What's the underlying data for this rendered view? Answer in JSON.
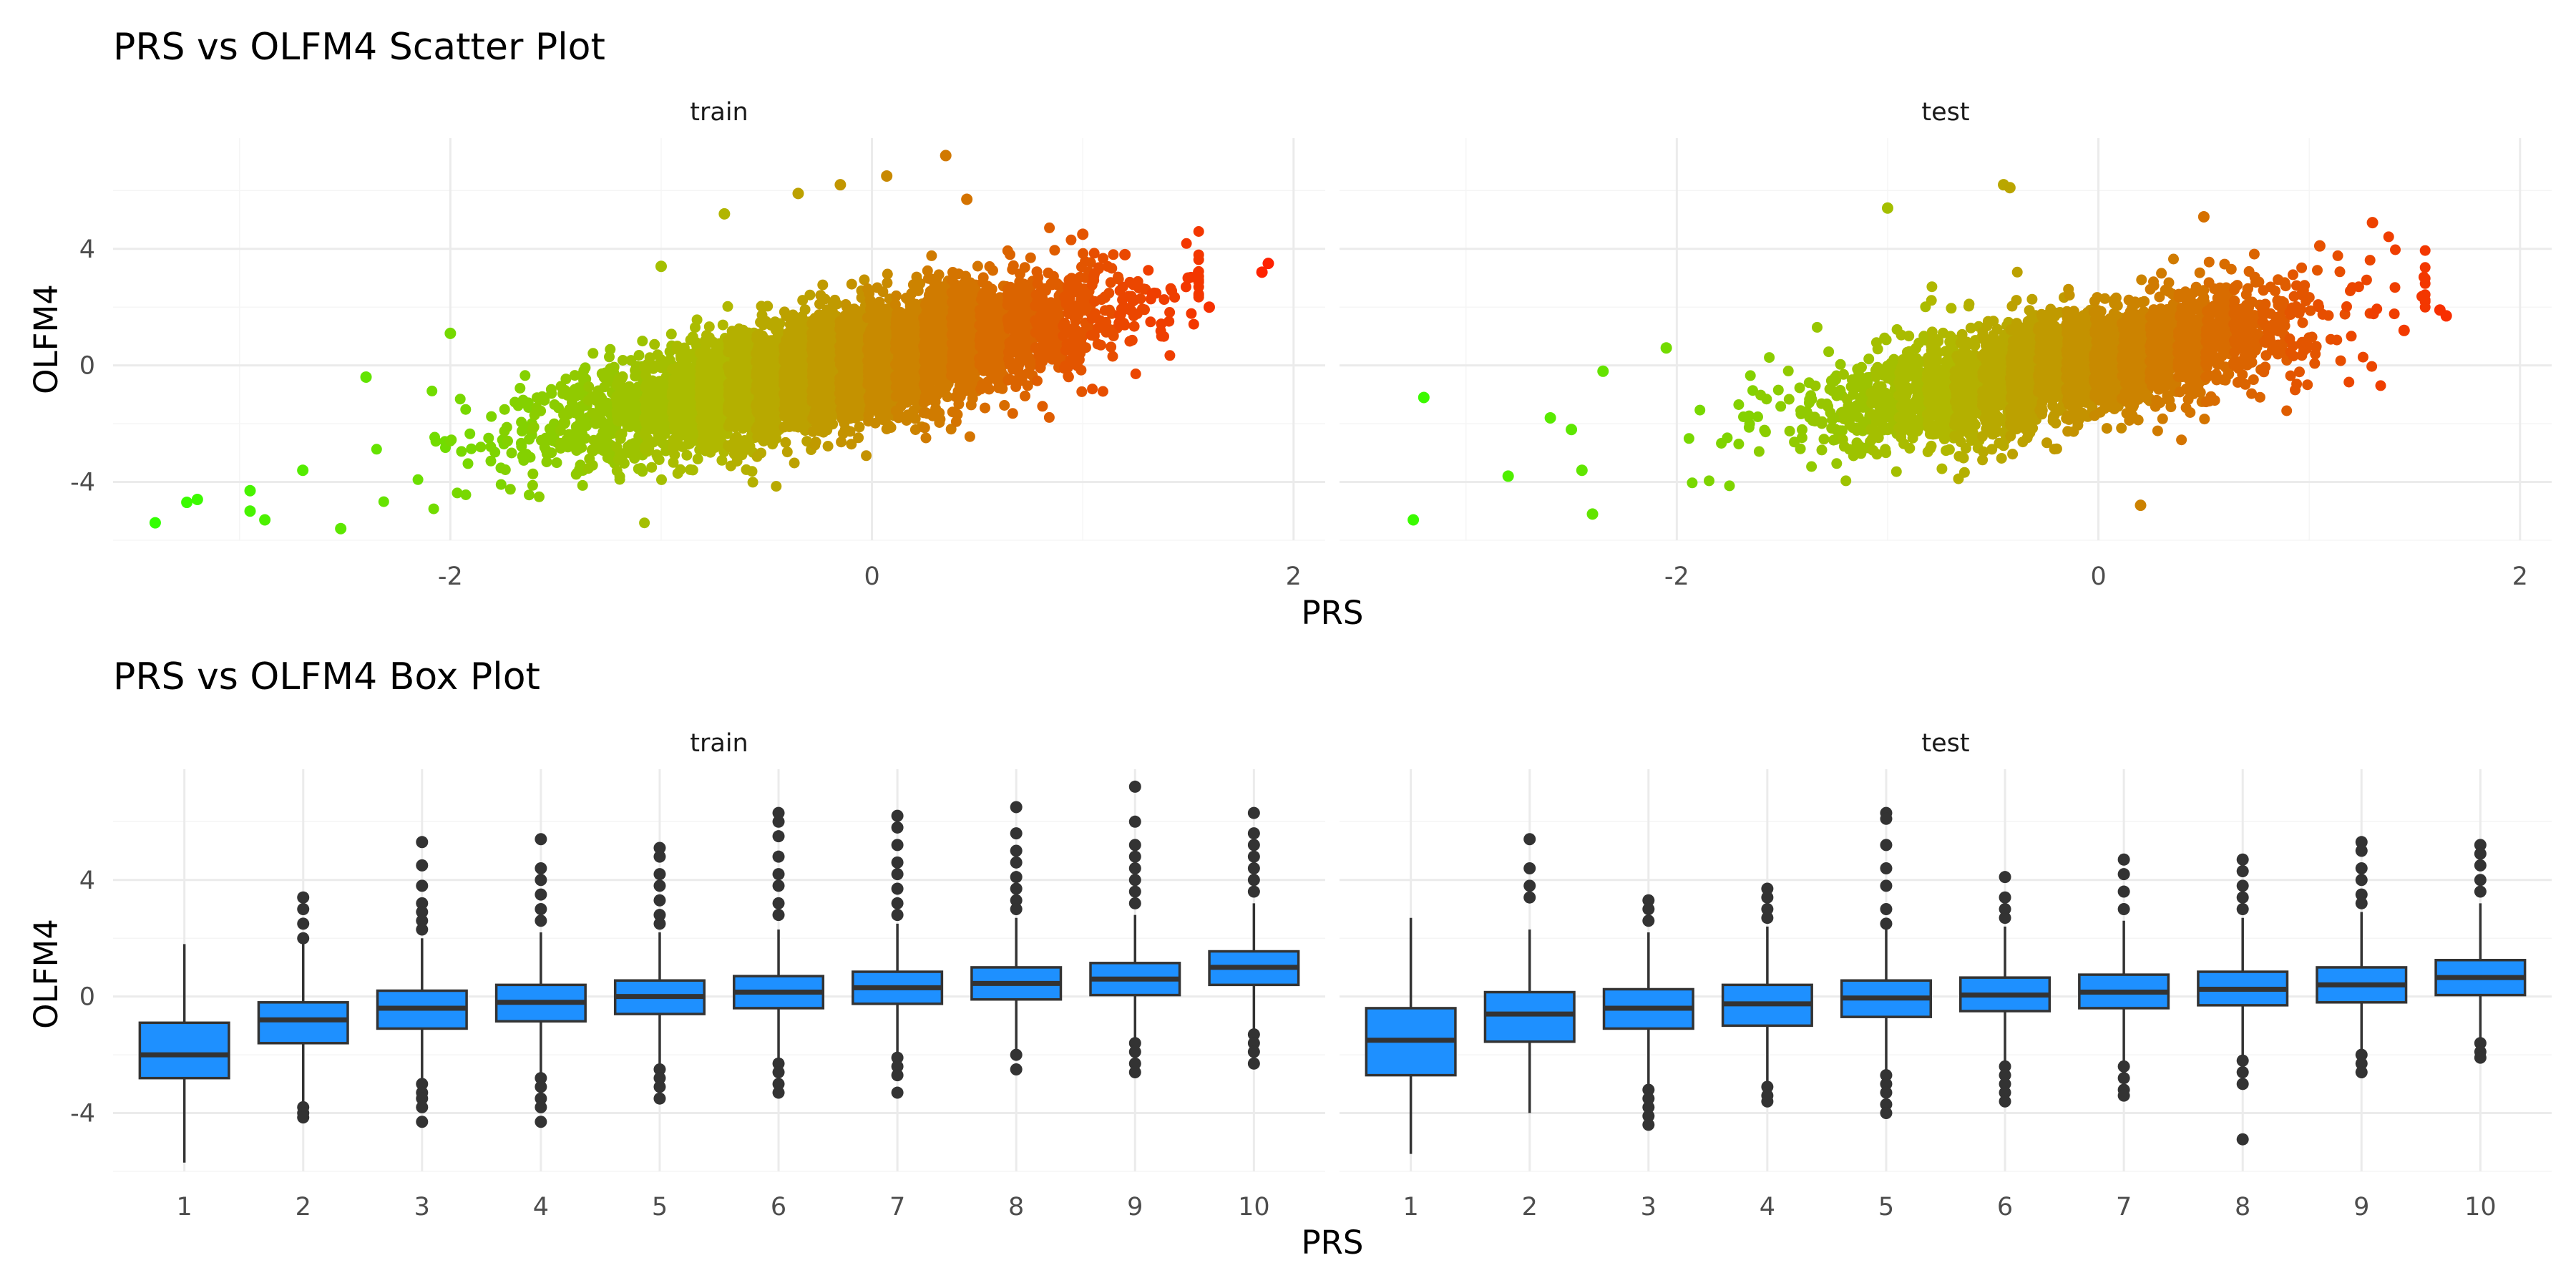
{
  "figure": {
    "scatter_title": "PRS vs OLFM4 Scatter Plot",
    "box_title": "PRS vs OLFM4 Box Plot"
  },
  "colors": {
    "gradient_low": "#33ff00",
    "gradient_mid": "#b0b800",
    "gradient_high": "#ff2000",
    "box_fill": "#1e90ff",
    "box_line": "#333333",
    "outlier": "#333333"
  },
  "chart_data": [
    {
      "type": "scatter",
      "title": "PRS vs OLFM4 Scatter Plot",
      "xlabel": "PRS",
      "ylabel": "OLFM4",
      "xlim": [
        -3.6,
        2.15
      ],
      "ylim": [
        -6.0,
        7.8
      ],
      "x_ticks": [
        -2,
        0,
        2
      ],
      "y_ticks": [
        -4,
        0,
        4
      ],
      "grid": true,
      "color_scale": "PRS value, green (low) to red (high)",
      "facets": [
        {
          "name": "train",
          "cloud": {
            "n": 5500,
            "x_mean": -0.15,
            "x_sd": 0.6,
            "y_intercept": 0.2,
            "y_slope": 1.5,
            "y_sd": 0.95
          },
          "extreme_points": [
            {
              "x": -3.4,
              "y": -5.4
            },
            {
              "x": -3.25,
              "y": -4.7
            },
            {
              "x": -3.2,
              "y": -4.6
            },
            {
              "x": -2.95,
              "y": -4.3
            },
            {
              "x": -2.95,
              "y": -5.0
            },
            {
              "x": -2.88,
              "y": -5.3
            },
            {
              "x": -2.7,
              "y": -3.6
            },
            {
              "x": -2.52,
              "y": -5.6
            },
            {
              "x": -2.4,
              "y": -0.4
            },
            {
              "x": -2.0,
              "y": 1.1
            },
            {
              "x": -1.0,
              "y": 3.4
            },
            {
              "x": -0.7,
              "y": 5.2
            },
            {
              "x": -0.35,
              "y": 5.9
            },
            {
              "x": -0.15,
              "y": 6.2
            },
            {
              "x": 0.07,
              "y": 6.5
            },
            {
              "x": 0.35,
              "y": 7.2
            },
            {
              "x": 0.45,
              "y": 5.7
            },
            {
              "x": 1.0,
              "y": 4.5
            },
            {
              "x": 1.2,
              "y": 3.8
            },
            {
              "x": 1.5,
              "y": 3.0
            },
            {
              "x": 1.6,
              "y": 2.0
            },
            {
              "x": 1.85,
              "y": 3.2
            },
            {
              "x": 1.88,
              "y": 3.5
            }
          ]
        },
        {
          "name": "test",
          "cloud": {
            "n": 3000,
            "x_mean": -0.15,
            "x_sd": 0.55,
            "y_intercept": 0.15,
            "y_slope": 1.4,
            "y_sd": 0.95
          },
          "extreme_points": [
            {
              "x": -3.2,
              "y": -1.1
            },
            {
              "x": -3.25,
              "y": -5.3
            },
            {
              "x": -2.8,
              "y": -3.8
            },
            {
              "x": -2.6,
              "y": -1.8
            },
            {
              "x": -2.5,
              "y": -2.2
            },
            {
              "x": -2.45,
              "y": -3.6
            },
            {
              "x": -2.4,
              "y": -5.1
            },
            {
              "x": -2.35,
              "y": -0.2
            },
            {
              "x": -2.05,
              "y": 0.6
            },
            {
              "x": -1.0,
              "y": 5.4
            },
            {
              "x": -0.45,
              "y": 6.2
            },
            {
              "x": -0.42,
              "y": 6.1
            },
            {
              "x": 0.2,
              "y": -4.8
            },
            {
              "x": 0.5,
              "y": 5.1
            },
            {
              "x": 1.05,
              "y": 4.1
            },
            {
              "x": 1.3,
              "y": 4.9
            },
            {
              "x": 1.45,
              "y": 1.2
            },
            {
              "x": 1.62,
              "y": 1.9
            },
            {
              "x": 1.65,
              "y": 1.7
            }
          ]
        }
      ]
    },
    {
      "type": "box",
      "title": "PRS vs OLFM4 Box Plot",
      "xlabel": "PRS",
      "ylabel": "OLFM4",
      "categories": [
        "1",
        "2",
        "3",
        "4",
        "5",
        "6",
        "7",
        "8",
        "9",
        "10"
      ],
      "ylim": [
        -6.0,
        7.8
      ],
      "y_ticks": [
        -4,
        0,
        4
      ],
      "grid": true,
      "facets": [
        {
          "name": "train",
          "boxes": [
            {
              "q1": -2.8,
              "median": -2.0,
              "q3": -0.9,
              "lower": -5.7,
              "upper": 1.8,
              "outliers": []
            },
            {
              "q1": -1.6,
              "median": -0.8,
              "q3": -0.2,
              "lower": -3.6,
              "upper": 1.9,
              "outliers": [
                3.4,
                3.0,
                2.5,
                2.0,
                -3.8,
                -4.0,
                -4.15
              ]
            },
            {
              "q1": -1.1,
              "median": -0.4,
              "q3": 0.2,
              "lower": -2.9,
              "upper": 2.0,
              "outliers": [
                5.3,
                4.5,
                3.8,
                3.2,
                2.9,
                2.6,
                2.3,
                -3.0,
                -3.3,
                -3.5,
                -3.8,
                -4.3
              ]
            },
            {
              "q1": -0.85,
              "median": -0.2,
              "q3": 0.4,
              "lower": -2.6,
              "upper": 2.2,
              "outliers": [
                5.4,
                4.4,
                4.0,
                3.5,
                3.0,
                2.6,
                -2.8,
                -3.1,
                -3.5,
                -3.8,
                -4.3
              ]
            },
            {
              "q1": -0.6,
              "median": 0.0,
              "q3": 0.55,
              "lower": -2.3,
              "upper": 2.2,
              "outliers": [
                5.1,
                4.8,
                4.2,
                3.8,
                3.3,
                2.8,
                2.5,
                -2.5,
                -2.8,
                -3.1,
                -3.5
              ]
            },
            {
              "q1": -0.4,
              "median": 0.15,
              "q3": 0.7,
              "lower": -2.1,
              "upper": 2.3,
              "outliers": [
                6.3,
                6.0,
                5.5,
                4.8,
                4.2,
                3.8,
                3.2,
                2.8,
                -2.3,
                -2.6,
                -3.0,
                -3.3
              ]
            },
            {
              "q1": -0.25,
              "median": 0.3,
              "q3": 0.85,
              "lower": -2.0,
              "upper": 2.5,
              "outliers": [
                6.2,
                5.8,
                5.2,
                4.6,
                4.2,
                3.7,
                3.2,
                2.8,
                -2.1,
                -2.4,
                -2.7,
                -3.3
              ]
            },
            {
              "q1": -0.1,
              "median": 0.45,
              "q3": 1.0,
              "lower": -1.8,
              "upper": 2.7,
              "outliers": [
                6.5,
                5.6,
                5.0,
                4.6,
                4.1,
                3.7,
                3.3,
                3.0,
                -2.0,
                -2.5
              ]
            },
            {
              "q1": 0.05,
              "median": 0.6,
              "q3": 1.15,
              "lower": -1.6,
              "upper": 2.8,
              "outliers": [
                7.2,
                6.0,
                5.2,
                4.8,
                4.4,
                4.0,
                3.6,
                3.2,
                -1.6,
                -1.9,
                -2.3,
                -2.6
              ]
            },
            {
              "q1": 0.4,
              "median": 1.0,
              "q3": 1.55,
              "lower": -1.2,
              "upper": 3.2,
              "outliers": [
                6.3,
                5.6,
                5.2,
                4.8,
                4.4,
                4.0,
                3.6,
                -1.3,
                -1.6,
                -1.9,
                -2.3
              ]
            }
          ]
        },
        {
          "name": "test",
          "boxes": [
            {
              "q1": -2.7,
              "median": -1.5,
              "q3": -0.4,
              "lower": -5.4,
              "upper": 2.7,
              "outliers": []
            },
            {
              "q1": -1.55,
              "median": -0.6,
              "q3": 0.15,
              "lower": -4.0,
              "upper": 2.3,
              "outliers": [
                5.4,
                4.4,
                3.8,
                3.4
              ]
            },
            {
              "q1": -1.1,
              "median": -0.4,
              "q3": 0.25,
              "lower": -3.0,
              "upper": 2.2,
              "outliers": [
                3.3,
                3.0,
                2.6,
                -3.2,
                -3.5,
                -3.8,
                -4.1,
                -4.4
              ]
            },
            {
              "q1": -1.0,
              "median": -0.25,
              "q3": 0.4,
              "lower": -3.0,
              "upper": 2.4,
              "outliers": [
                3.7,
                3.4,
                3.0,
                2.7,
                -3.1,
                -3.4,
                -3.6
              ]
            },
            {
              "q1": -0.7,
              "median": -0.05,
              "q3": 0.55,
              "lower": -2.5,
              "upper": 2.3,
              "outliers": [
                6.3,
                6.1,
                5.2,
                4.4,
                3.8,
                3.0,
                2.5,
                -2.7,
                -3.0,
                -3.3,
                -3.7,
                -4.0
              ]
            },
            {
              "q1": -0.5,
              "median": 0.05,
              "q3": 0.65,
              "lower": -2.2,
              "upper": 2.4,
              "outliers": [
                4.1,
                3.4,
                3.0,
                2.7,
                -2.4,
                -2.7,
                -3.0,
                -3.3,
                -3.6
              ]
            },
            {
              "q1": -0.4,
              "median": 0.15,
              "q3": 0.75,
              "lower": -2.2,
              "upper": 2.6,
              "outliers": [
                4.7,
                4.2,
                3.6,
                3.0,
                -2.4,
                -2.8,
                -3.2,
                -3.4
              ]
            },
            {
              "q1": -0.3,
              "median": 0.25,
              "q3": 0.85,
              "lower": -2.0,
              "upper": 2.7,
              "outliers": [
                4.7,
                4.3,
                3.8,
                3.4,
                3.0,
                -2.2,
                -2.6,
                -3.0,
                -4.9
              ]
            },
            {
              "q1": -0.2,
              "median": 0.4,
              "q3": 1.0,
              "lower": -1.8,
              "upper": 2.9,
              "outliers": [
                5.3,
                5.0,
                4.4,
                4.0,
                3.5,
                3.2,
                -2.0,
                -2.3,
                -2.6
              ]
            },
            {
              "q1": 0.05,
              "median": 0.65,
              "q3": 1.25,
              "lower": -1.4,
              "upper": 3.2,
              "outliers": [
                5.2,
                4.9,
                4.5,
                4.0,
                3.6,
                -1.6,
                -1.9,
                -2.1
              ]
            }
          ]
        }
      ]
    }
  ]
}
